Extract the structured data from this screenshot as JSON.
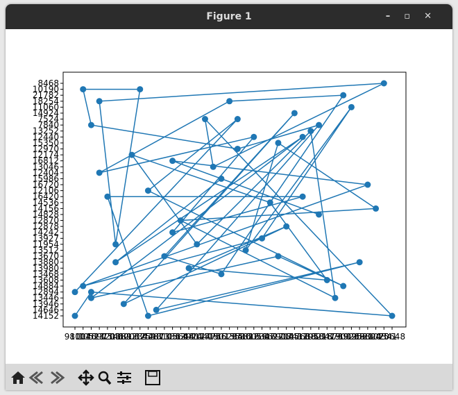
{
  "window": {
    "title": "Figure 1"
  },
  "chart_data": {
    "type": "line",
    "x_categories": [
      "9811",
      "10046",
      "10523",
      "10975",
      "11208",
      "11460",
      "11893",
      "12037",
      "12344",
      "12590",
      "12871",
      "13105",
      "13362",
      "13648",
      "13920",
      "14177",
      "14409",
      "14756",
      "15013",
      "15284",
      "15530",
      "15812",
      "16059",
      "16347",
      "16622",
      "16908",
      "17145",
      "17431",
      "17688",
      "17950",
      "18216",
      "18473",
      "18739",
      "19002",
      "19268",
      "19531",
      "19804",
      "20075",
      "20341",
      "20648"
    ],
    "y_categories": [
      "14152",
      "14646",
      "13946",
      "13446",
      "12894",
      "14884",
      "13608",
      "13468",
      "13980",
      "13880",
      "13670",
      "13512",
      "11954",
      "13927",
      "14242",
      "12878",
      "12870",
      "14828",
      "14156",
      "14536",
      "16420",
      "12106",
      "16720",
      "15986",
      "12404",
      "13046",
      "16812",
      "12174",
      "12970",
      "15350",
      "12440",
      "13252",
      "7840",
      "7524",
      "14924",
      "11060",
      "18254",
      "21782",
      "10190",
      "8468"
    ],
    "series": [
      {
        "color": "#1f77b4",
        "x": [
          "9811",
          "10523",
          "20648",
          "14409",
          "14756",
          "20341",
          "10975",
          "11460",
          "12344",
          "10046",
          "10523",
          "15530",
          "18216",
          "12871",
          "19531",
          "12590",
          "11208",
          "17688",
          "13362",
          "16059",
          "10975",
          "15284",
          "19002",
          "15013",
          "13105",
          "17431",
          "11893",
          "17145",
          "13920",
          "18473",
          "16622",
          "12037",
          "14177",
          "17950",
          "18739",
          "13648",
          "20075",
          "16908",
          "15812",
          "19268",
          "16347",
          "10046",
          "19804",
          "13362",
          "18216",
          "15013",
          "11460",
          "17688",
          "10523",
          "16908",
          "19002",
          "12590",
          "15530",
          "9811"
        ],
        "y": [
          "14152",
          "12894",
          "14152",
          "7524",
          "13046",
          "8468",
          "18254",
          "11954",
          "10190",
          "10190",
          "7840",
          "12970",
          "7840",
          "14646",
          "13880",
          "14152",
          "16420",
          "16420",
          "14242",
          "12440",
          "12404",
          "18254",
          "21782",
          "13468",
          "13670",
          "14924",
          "13946",
          "12878",
          "13980",
          "13608",
          "14536",
          "12174",
          "11954",
          "13252",
          "13446",
          "12870",
          "14156",
          "15350",
          "13512",
          "11060",
          "13927",
          "14884",
          "16720",
          "16812",
          "14828",
          "15986",
          "13880",
          "12440",
          "13446",
          "13670",
          "14884",
          "12106",
          "7524",
          "12894"
        ]
      }
    ]
  }
}
